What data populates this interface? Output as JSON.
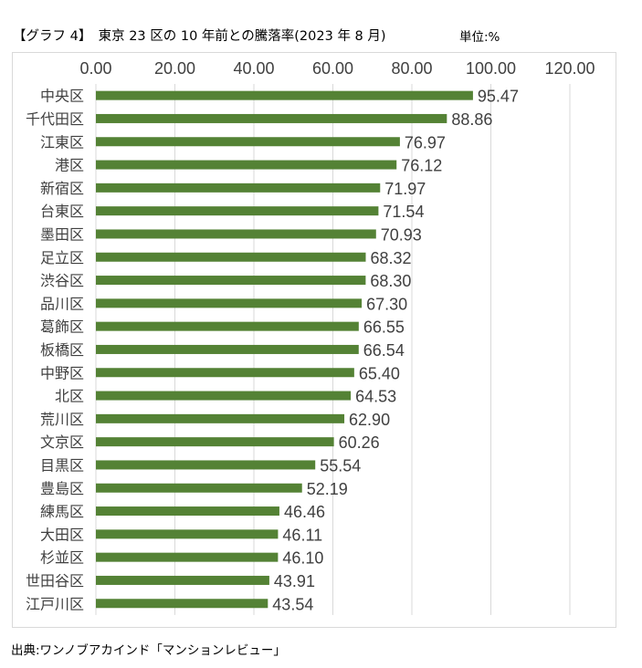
{
  "title": "【グラフ 4】　東京 23 区の 10 年前との騰落率(2023 年 8 月)",
  "unit": "単位:%",
  "source": "出典:ワンノブアカインド「マンションレビュー」",
  "colors": {
    "bar": "#548235",
    "grid": "#d9d9d9",
    "text": "#404040"
  },
  "chart_data": {
    "type": "bar",
    "orientation": "horizontal",
    "title": "東京 23 区の 10 年前との騰落率(2023 年 8 月)",
    "xlabel": "",
    "ylabel": "",
    "xlim": [
      0,
      120
    ],
    "ticks": [
      0,
      20,
      40,
      60,
      80,
      100,
      120
    ],
    "tick_labels": [
      "0.00",
      "20.00",
      "40.00",
      "60.00",
      "80.00",
      "100.00",
      "120.00"
    ],
    "axis_position": "top",
    "grid": true,
    "categories": [
      "中央区",
      "千代田区",
      "江東区",
      "港区",
      "新宿区",
      "台東区",
      "墨田区",
      "足立区",
      "渋谷区",
      "品川区",
      "葛飾区",
      "板橋区",
      "中野区",
      "北区",
      "荒川区",
      "文京区",
      "目黒区",
      "豊島区",
      "練馬区",
      "大田区",
      "杉並区",
      "世田谷区",
      "江戸川区"
    ],
    "values": [
      95.47,
      88.86,
      76.97,
      76.12,
      71.97,
      71.54,
      70.93,
      68.32,
      68.3,
      67.3,
      66.55,
      66.54,
      65.4,
      64.53,
      62.9,
      60.26,
      55.54,
      52.19,
      46.46,
      46.11,
      46.1,
      43.91,
      43.54
    ],
    "value_labels": [
      "95.47",
      "88.86",
      "76.97",
      "76.12",
      "71.97",
      "71.54",
      "70.93",
      "68.32",
      "68.30",
      "67.30",
      "66.55",
      "66.54",
      "65.40",
      "64.53",
      "62.90",
      "60.26",
      "55.54",
      "52.19",
      "46.46",
      "46.11",
      "46.10",
      "43.91",
      "43.54"
    ]
  }
}
